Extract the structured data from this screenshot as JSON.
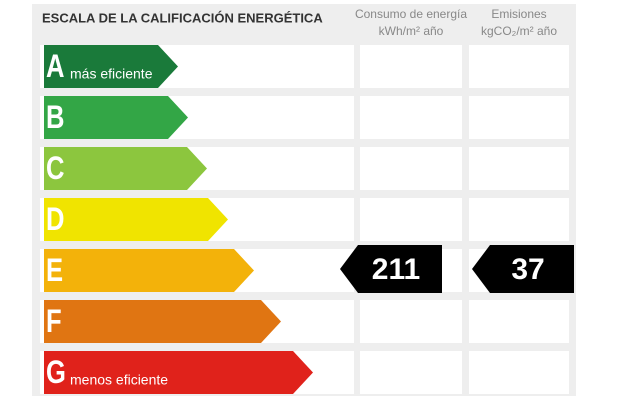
{
  "header": {
    "title": "ESCALA DE LA CALIFICACIÓN ENERGÉTICA",
    "columns": [
      {
        "line1": "Consumo de energía",
        "line2": "kWh/m² año"
      },
      {
        "line1": "Emisiones",
        "line2": "kgCO₂/m² año"
      }
    ]
  },
  "ratings": [
    {
      "letter": "A",
      "label": "más eficiente",
      "color": "#1a7a3a"
    },
    {
      "letter": "B",
      "color": "#33a646"
    },
    {
      "letter": "C",
      "color": "#8cc63e"
    },
    {
      "letter": "D",
      "color": "#f0e400"
    },
    {
      "letter": "E",
      "color": "#f3b20a",
      "consumption": 211,
      "emissions": 37
    },
    {
      "letter": "F",
      "color": "#e07512"
    },
    {
      "letter": "G",
      "label": "menos eficiente",
      "color": "#e0221b"
    }
  ]
}
